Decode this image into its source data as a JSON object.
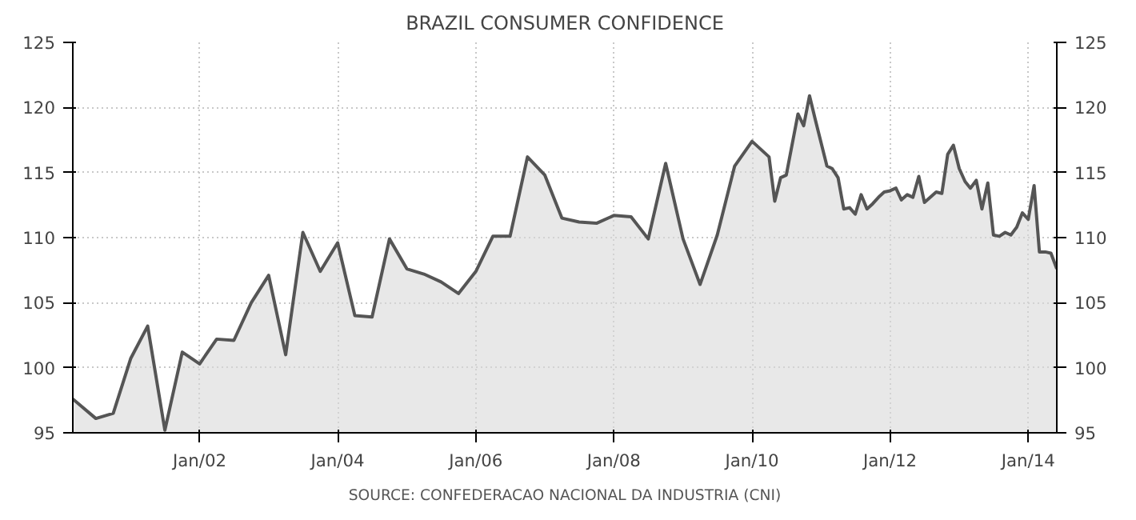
{
  "chart_data": {
    "type": "area",
    "title": "BRAZIL CONSUMER CONFIDENCE",
    "annotations": [
      "SOURCE: CONFEDERACAO NACIONAL DA INDUSTRIA (CNI)"
    ],
    "x": [
      "2000-03",
      "2000-07",
      "2000-10",
      "2001-01",
      "2001-04",
      "2001-07",
      "2001-10",
      "2002-01",
      "2002-04",
      "2002-07",
      "2002-10",
      "2003-01",
      "2003-04",
      "2003-07",
      "2003-10",
      "2004-01",
      "2004-04",
      "2004-07",
      "2004-10",
      "2005-01",
      "2005-04",
      "2005-07",
      "2005-10",
      "2006-01",
      "2006-04",
      "2006-07",
      "2006-10",
      "2007-01",
      "2007-04",
      "2007-07",
      "2007-10",
      "2008-01",
      "2008-04",
      "2008-07",
      "2008-10",
      "2009-01",
      "2009-04",
      "2009-07",
      "2009-10",
      "2010-01",
      "2010-04",
      "2010-05",
      "2010-06",
      "2010-07",
      "2010-09",
      "2010-10",
      "2010-11",
      "2010-12",
      "2011-02",
      "2011-03",
      "2011-04",
      "2011-05",
      "2011-06",
      "2011-07",
      "2011-08",
      "2011-09",
      "2011-10",
      "2011-11",
      "2011-12",
      "2012-01",
      "2012-02",
      "2012-03",
      "2012-04",
      "2012-05",
      "2012-06",
      "2012-07",
      "2012-08",
      "2012-09",
      "2012-10",
      "2012-11",
      "2012-12",
      "2013-01",
      "2013-02",
      "2013-03",
      "2013-04",
      "2013-05",
      "2013-06",
      "2013-07",
      "2013-08",
      "2013-09",
      "2013-10",
      "2013-11",
      "2013-12",
      "2014-01",
      "2014-02",
      "2014-03",
      "2014-04",
      "2014-05",
      "2014-06"
    ],
    "series": [
      {
        "color": "#555555",
        "values": [
          97.6,
          96.1,
          96.5,
          100.7,
          103.2,
          95.2,
          101.2,
          100.3,
          102.2,
          102.1,
          105.0,
          107.1,
          101.0,
          110.4,
          107.4,
          109.6,
          104.0,
          103.9,
          109.9,
          107.6,
          107.2,
          106.6,
          105.7,
          107.4,
          110.1,
          110.1,
          116.2,
          114.8,
          111.5,
          111.2,
          111.1,
          111.7,
          111.6,
          109.9,
          115.7,
          109.9,
          106.4,
          110.2,
          115.5,
          117.4,
          116.2,
          112.8,
          114.6,
          114.8,
          119.5,
          118.6,
          120.9,
          119.1,
          115.5,
          115.3,
          114.6,
          112.2,
          112.3,
          111.8,
          113.3,
          112.2,
          112.6,
          113.1,
          113.5,
          113.6,
          113.8,
          112.9,
          113.3,
          113.1,
          114.7,
          112.7,
          113.1,
          113.5,
          113.4,
          116.4,
          117.1,
          115.3,
          114.3,
          113.8,
          114.4,
          112.2,
          114.2,
          110.2,
          110.1,
          110.4,
          110.2,
          110.8,
          111.9,
          111.4,
          114.0,
          108.9,
          108.9,
          108.8,
          107.6
        ]
      }
    ],
    "xlim": [
      "2000-03",
      "2014-06"
    ],
    "xticks": [
      {
        "value": "2002-01",
        "label": "Jan/02"
      },
      {
        "value": "2004-01",
        "label": "Jan/04"
      },
      {
        "value": "2006-01",
        "label": "Jan/06"
      },
      {
        "value": "2008-01",
        "label": "Jan/08"
      },
      {
        "value": "2010-01",
        "label": "Jan/10"
      },
      {
        "value": "2012-01",
        "label": "Jan/12"
      },
      {
        "value": "2014-01",
        "label": "Jan/14"
      }
    ],
    "ylim": [
      95,
      125
    ],
    "yticks": [
      95,
      100,
      105,
      110,
      115,
      120,
      125
    ],
    "y2lim": [
      95,
      125
    ],
    "y2ticks": [
      95,
      100,
      105,
      110,
      115,
      120,
      125
    ],
    "grid": true
  }
}
